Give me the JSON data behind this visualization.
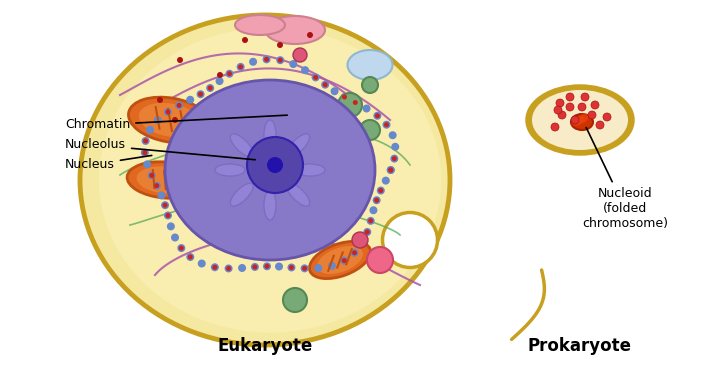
{
  "background_color": "#ffffff",
  "eukaryote_label": "Eukaryote",
  "prokaryote_label": "Prokaryote",
  "nucleus_label": "Nucleus",
  "nucleolus_label": "Nucleolus",
  "chromatin_label": "Chromatin",
  "nucleoid_label": "Nucleoid\n(folded\nchromosome)",
  "cell_outer_color": "#c8a020",
  "cell_fill_color": "#f5e8a0",
  "cell_fill_color2": "#f0d878",
  "nucleus_fill": "#8878c8",
  "nucleus_border": "#6655aa",
  "nucleolus_fill": "#5544aa",
  "er_color": "#6688cc",
  "er_dot_color": "#cc2222",
  "mito_fill": "#e06820",
  "mito_border": "#c05010",
  "golgi_color": "#e888a0",
  "vesicle_color": "#88bbdd",
  "green_sphere_color": "#77aa77",
  "pink_sphere_color": "#ee6688",
  "dark_red_dot": "#aa1111",
  "purple_line": "#aa55aa",
  "green_line": "#55aa55",
  "gray_stack": "#888888",
  "prokaryote_outer": "#c8a020",
  "prokaryote_fill": "#f5e8c0",
  "nucleoid_color": "#cc3300",
  "prokaryote_dot": "#dd3333"
}
